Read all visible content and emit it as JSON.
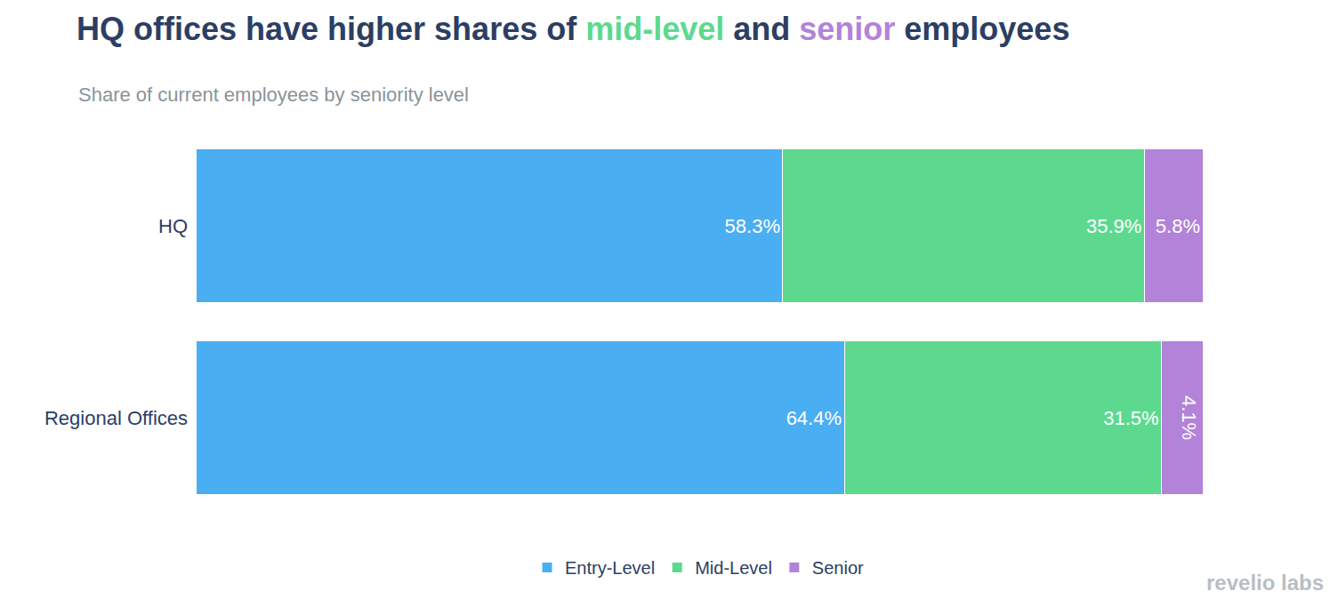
{
  "chart_data": {
    "type": "bar",
    "title": "HQ offices have higher shares of mid-level and senior employees",
    "subtitle": "Share of current employees by seniority level",
    "source": "revelio labs",
    "orientation": "horizontal",
    "stacked": true,
    "data_labels": true,
    "tick_labels": "y",
    "legend": "bottom",
    "grid": false,
    "xlim": [
      0,
      100
    ],
    "categories": [
      "HQ",
      "Regional Offices"
    ],
    "series": [
      {
        "name": "Entry-Level",
        "color": "#4aaef2",
        "values": [
          58.3,
          64.4
        ],
        "value_labels": [
          "58.3%",
          "64.4%"
        ]
      },
      {
        "name": "Mid-Level",
        "color": "#5dd98f",
        "values": [
          35.9,
          31.5
        ],
        "value_labels": [
          "35.9%",
          "31.5%"
        ]
      },
      {
        "name": "Senior",
        "color": "#b283d8",
        "values": [
          5.8,
          4.1
        ],
        "value_labels": [
          "5.8%",
          "4.1%"
        ]
      }
    ]
  }
}
